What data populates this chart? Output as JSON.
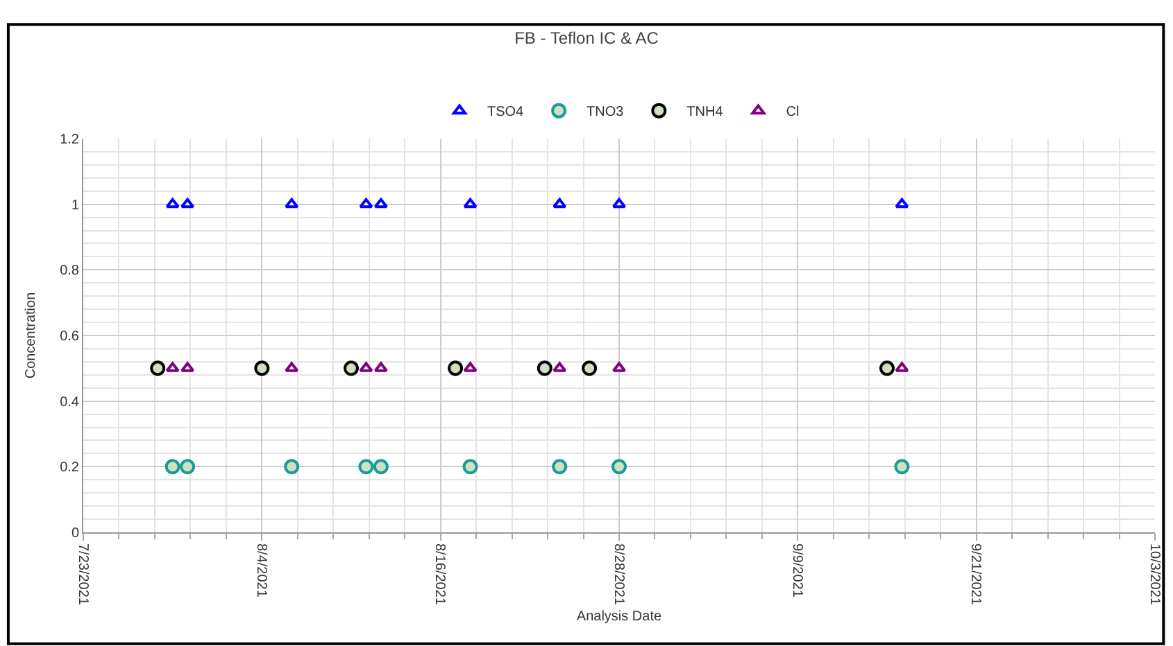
{
  "chart_data": {
    "type": "scatter",
    "title": "FB - Teflon IC & AC",
    "xlabel": "Analysis Date",
    "ylabel": "Concentration",
    "series": [
      {
        "name": "TSO4",
        "color": "#0000ff",
        "marker": "triangle",
        "x": [
          "2021-07-29",
          "2021-07-30",
          "2021-08-06",
          "2021-08-11",
          "2021-08-12",
          "2021-08-18",
          "2021-08-24",
          "2021-08-28",
          "2021-09-16"
        ],
        "values": [
          1,
          1,
          1,
          1,
          1,
          1,
          1,
          1,
          1
        ]
      },
      {
        "name": "TNO3",
        "color": "#189c96",
        "marker": "circle",
        "x": [
          "2021-07-29",
          "2021-07-30",
          "2021-08-06",
          "2021-08-11",
          "2021-08-12",
          "2021-08-18",
          "2021-08-24",
          "2021-08-28",
          "2021-09-16"
        ],
        "values": [
          0.2,
          0.2,
          0.2,
          0.2,
          0.2,
          0.2,
          0.2,
          0.2,
          0.2
        ]
      },
      {
        "name": "TNH4",
        "color": "#000000",
        "marker": "circle",
        "x": [
          "2021-07-28",
          "2021-08-04",
          "2021-08-10",
          "2021-08-17",
          "2021-08-23",
          "2021-08-26",
          "2021-09-15"
        ],
        "values": [
          0.5,
          0.5,
          0.5,
          0.5,
          0.5,
          0.5,
          0.5
        ]
      },
      {
        "name": "Cl",
        "color": "#800080",
        "marker": "triangle",
        "x": [
          "2021-07-29",
          "2021-07-30",
          "2021-08-06",
          "2021-08-11",
          "2021-08-12",
          "2021-08-18",
          "2021-08-24",
          "2021-08-28",
          "2021-09-16"
        ],
        "values": [
          0.5,
          0.5,
          0.5,
          0.5,
          0.5,
          0.5,
          0.5,
          0.5,
          0.5
        ]
      }
    ],
    "xlim": [
      "2021-07-23",
      "2021-10-03"
    ],
    "xticks": [
      {
        "value": "2021-07-23",
        "label": "7/23/2021"
      },
      {
        "value": "2021-08-04",
        "label": "8/4/2021"
      },
      {
        "value": "2021-08-16",
        "label": "8/16/2021"
      },
      {
        "value": "2021-08-28",
        "label": "8/28/2021"
      },
      {
        "value": "2021-09-09",
        "label": "9/9/2021"
      },
      {
        "value": "2021-09-21",
        "label": "9/21/2021"
      },
      {
        "value": "2021-10-03",
        "label": "10/3/2021"
      }
    ],
    "ylim": [
      0,
      1.2
    ],
    "yticks": [
      0,
      0.2,
      0.4,
      0.6,
      0.8,
      1,
      1.2
    ],
    "grid": true,
    "legend": "top"
  }
}
